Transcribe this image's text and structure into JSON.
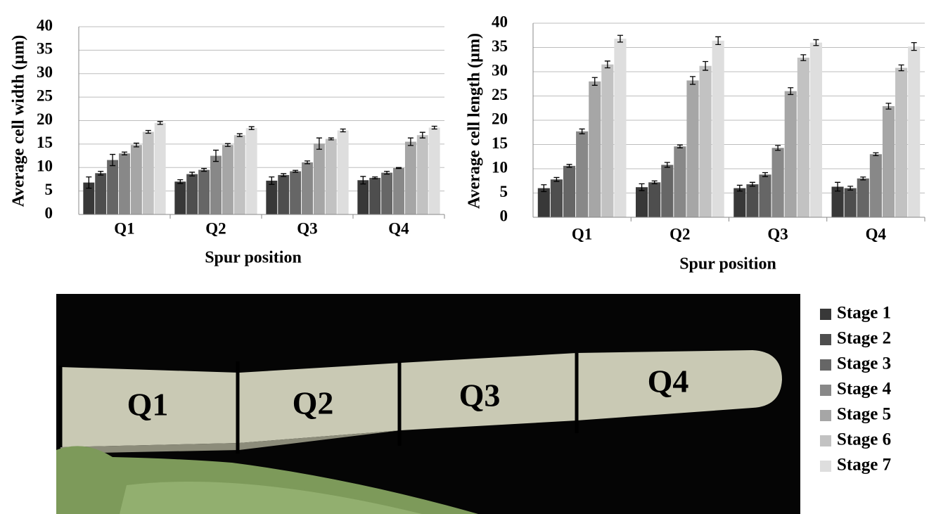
{
  "chart_data": [
    {
      "type": "bar",
      "y_label": "Average cell width (µm)",
      "x_label": "Spur position",
      "categories": [
        "Q1",
        "Q2",
        "Q3",
        "Q4"
      ],
      "ylim": [
        0,
        40
      ],
      "yticks": [
        0,
        5,
        10,
        15,
        20,
        25,
        30,
        35,
        40
      ],
      "grid": true,
      "series": [
        {
          "name": "Stage 1",
          "color": "#383838",
          "values": [
            6.8,
            7.0,
            7.2,
            7.3
          ],
          "errors": [
            1.2,
            0.4,
            0.8,
            0.8
          ]
        },
        {
          "name": "Stage 2",
          "color": "#4e4e4e",
          "values": [
            8.8,
            8.6,
            8.4,
            7.8
          ],
          "errors": [
            0.4,
            0.4,
            0.3,
            0.2
          ]
        },
        {
          "name": "Stage 3",
          "color": "#666666",
          "values": [
            11.6,
            9.5,
            9.2,
            8.9
          ],
          "errors": [
            1.2,
            0.3,
            0.2,
            0.3
          ]
        },
        {
          "name": "Stage 4",
          "color": "#888888",
          "values": [
            13.0,
            12.5,
            11.1,
            9.9
          ],
          "errors": [
            0.3,
            1.2,
            0.3,
            0.1
          ]
        },
        {
          "name": "Stage 5",
          "color": "#a6a6a6",
          "values": [
            14.8,
            14.8,
            15.1,
            15.5
          ],
          "errors": [
            0.4,
            0.3,
            1.2,
            0.8
          ]
        },
        {
          "name": "Stage 6",
          "color": "#c2c2c2",
          "values": [
            17.6,
            16.9,
            16.1,
            16.9
          ],
          "errors": [
            0.3,
            0.3,
            0.2,
            0.6
          ]
        },
        {
          "name": "Stage 7",
          "color": "#dedede",
          "values": [
            19.5,
            18.4,
            17.9,
            18.5
          ],
          "errors": [
            0.3,
            0.3,
            0.3,
            0.3
          ]
        }
      ]
    },
    {
      "type": "bar",
      "y_label": "Average cell length (µm)",
      "x_label": "Spur position",
      "categories": [
        "Q1",
        "Q2",
        "Q3",
        "Q4"
      ],
      "ylim": [
        0,
        40
      ],
      "yticks": [
        0,
        5,
        10,
        15,
        20,
        25,
        30,
        35,
        40
      ],
      "grid": true,
      "series": [
        {
          "color": "#383838",
          "values": [
            6.0,
            6.2,
            6.0,
            6.3
          ],
          "errors": [
            0.7,
            0.7,
            0.6,
            0.9
          ]
        },
        {
          "color": "#4e4e4e",
          "values": [
            7.8,
            7.2,
            6.8,
            6.0
          ],
          "errors": [
            0.4,
            0.3,
            0.4,
            0.4
          ]
        },
        {
          "color": "#666666",
          "values": [
            10.6,
            10.8,
            8.8,
            8.0
          ],
          "errors": [
            0.3,
            0.5,
            0.4,
            0.3
          ]
        },
        {
          "color": "#888888",
          "values": [
            17.7,
            14.6,
            14.3,
            13.0
          ],
          "errors": [
            0.5,
            0.3,
            0.5,
            0.3
          ]
        },
        {
          "color": "#a6a6a6",
          "values": [
            28.0,
            28.2,
            26.0,
            22.9
          ],
          "errors": [
            0.8,
            0.8,
            0.7,
            0.6
          ]
        },
        {
          "color": "#c2c2c2",
          "values": [
            31.5,
            31.2,
            32.9,
            30.8
          ],
          "errors": [
            0.7,
            0.9,
            0.6,
            0.6
          ]
        },
        {
          "color": "#dedede",
          "values": [
            36.8,
            36.4,
            36.0,
            35.2
          ],
          "errors": [
            0.7,
            0.8,
            0.6,
            0.8
          ]
        }
      ]
    }
  ],
  "photo": {
    "labels": [
      "Q1",
      "Q2",
      "Q3",
      "Q4"
    ]
  }
}
